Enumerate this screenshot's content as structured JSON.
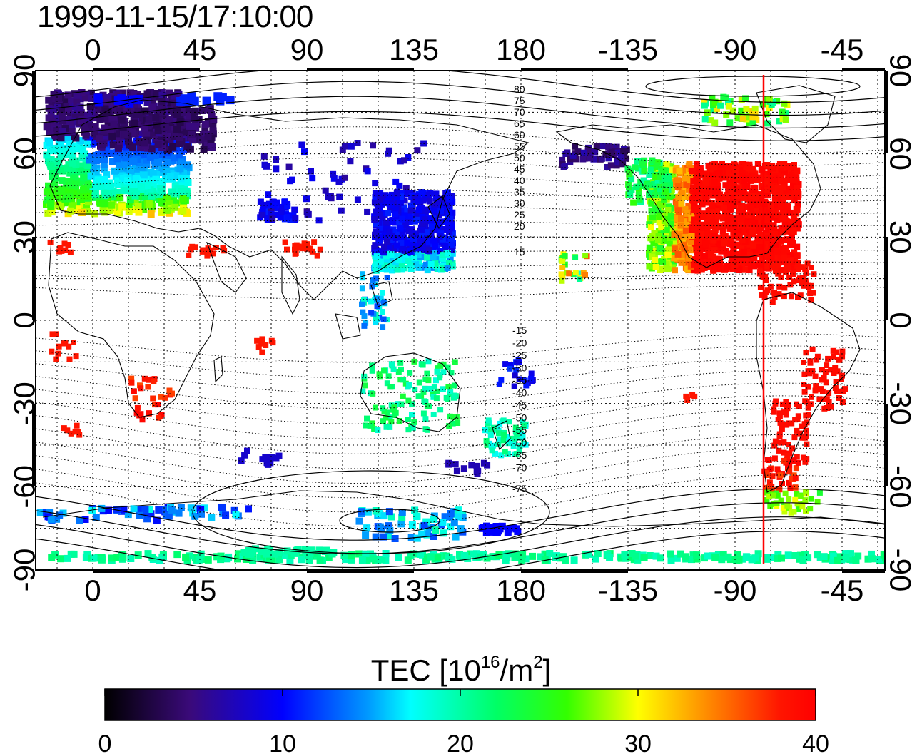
{
  "title": "1999-11-15/17:10:00",
  "map": {
    "lon_ticks_top": [
      "0",
      "45",
      "90",
      "135",
      "180",
      "-135",
      "-90",
      "-45"
    ],
    "lon_ticks_bottom": [
      "0",
      "45",
      "90",
      "135",
      "180",
      "-135",
      "-90",
      "-45"
    ],
    "lat_ticks_left": [
      "90",
      "60",
      "30",
      "0",
      "-30",
      "-60",
      "-90"
    ],
    "lat_ticks_right": [
      "90",
      "60",
      "30",
      "0",
      "-30",
      "-60",
      "-90"
    ],
    "contour_labels_north": [
      "80",
      "75",
      "70",
      "65",
      "60",
      "55",
      "50",
      "45",
      "40",
      "35",
      "30",
      "25",
      "20",
      "15"
    ],
    "contour_labels_south": [
      "-15",
      "-20",
      "-25",
      "-30",
      "-35",
      "-40",
      "-45",
      "-50",
      "-55",
      "-60",
      "-65",
      "-70",
      "-75"
    ],
    "marker_line_lon": -78,
    "marker_color": "#ff0000",
    "data_color_ranges": [
      "dark violet high north Europe/Asia",
      "red North America",
      "blue East Asia"
    ]
  },
  "colorbar": {
    "title_main": "TEC  [10",
    "title_exp": "16",
    "title_unit": "/m",
    "title_unit_exp": "2",
    "title_close": "]",
    "ticks": [
      "0",
      "10",
      "20",
      "30",
      "40"
    ],
    "min": 0,
    "max": 40
  }
}
